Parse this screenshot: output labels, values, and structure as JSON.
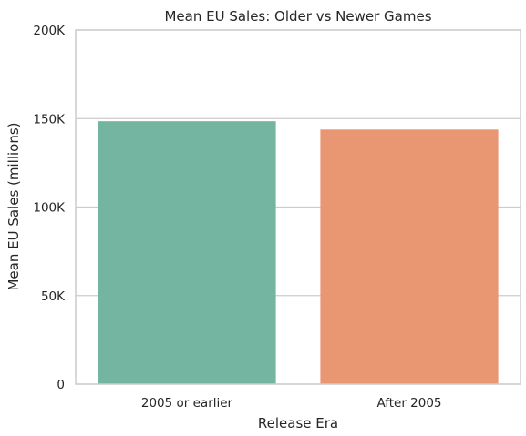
{
  "chart_data": {
    "type": "bar",
    "title": "Mean EU Sales: Older vs Newer Games",
    "xlabel": "Release Era",
    "ylabel": "Mean EU Sales (millions)",
    "categories": [
      "2005 or earlier",
      "After 2005"
    ],
    "values": [
      148500,
      143800
    ],
    "ylim": [
      0,
      200000
    ],
    "yticks": [
      0,
      50000,
      100000,
      150000,
      200000
    ],
    "ytick_labels": [
      "0",
      "50K",
      "100K",
      "150K",
      "200K"
    ],
    "grid": true,
    "colors": [
      "#73b5a0",
      "#e99673"
    ],
    "frame_color": "#cccccc",
    "grid_color": "#cccccc"
  }
}
